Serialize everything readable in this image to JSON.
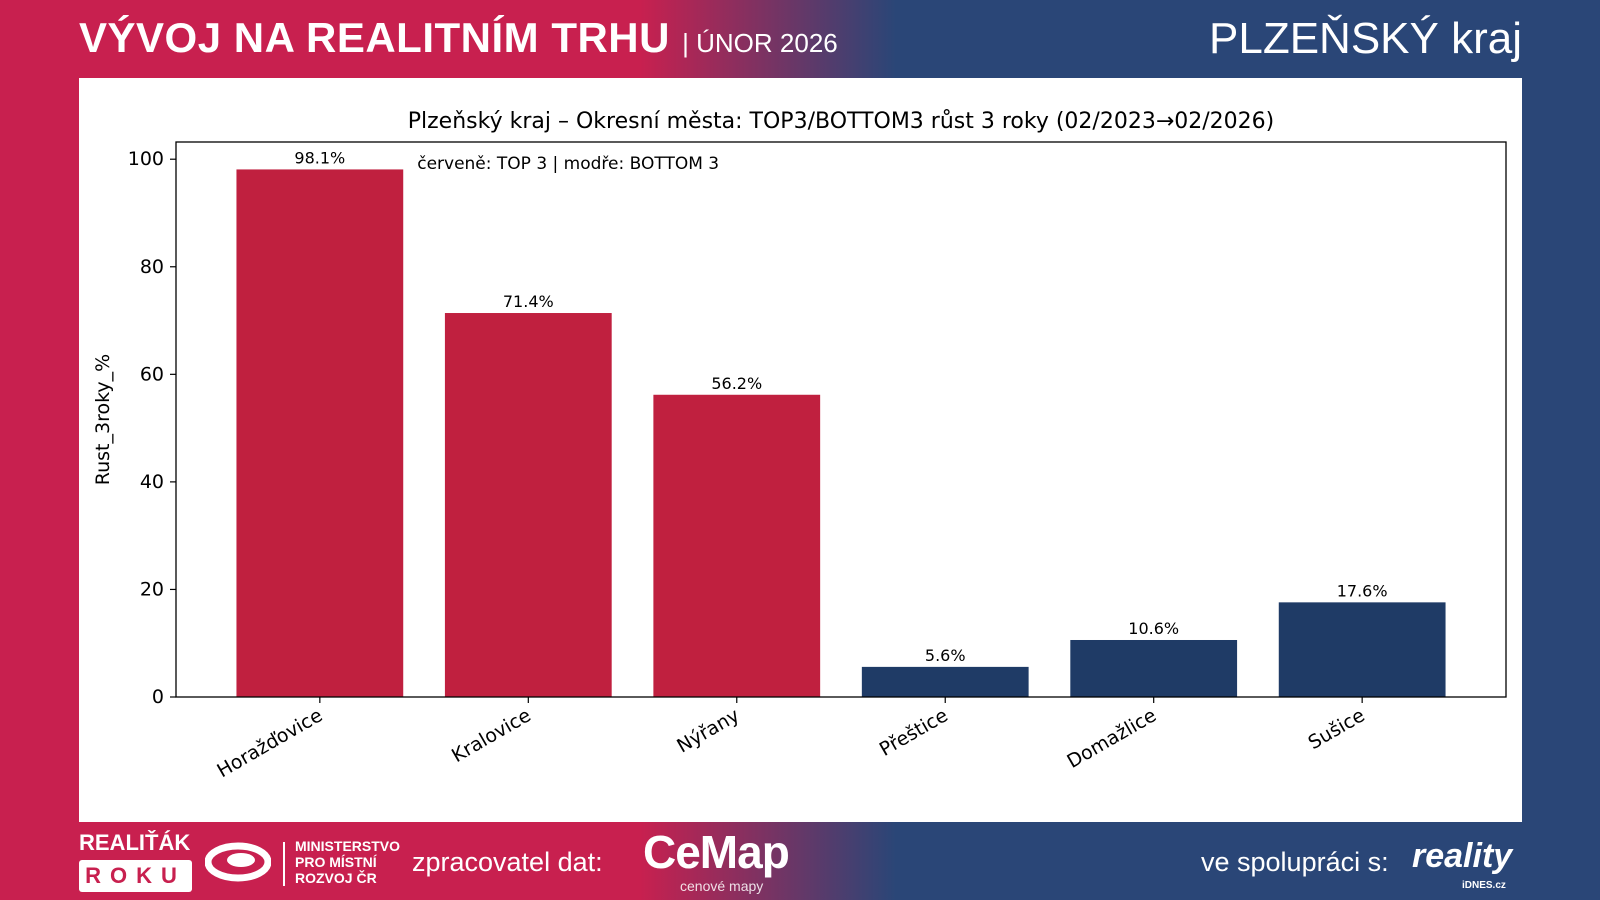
{
  "header": {
    "title": "VÝVOJ NA REALITNÍM TRHU",
    "subtitle": "| ÚNOR 2026",
    "region": "PLZEŇSKÝ kraj"
  },
  "colors": {
    "top": "#c0203f",
    "bottom": "#1f3b66"
  },
  "chart_data": {
    "type": "bar",
    "title": "Plzeňský kraj – Okresní města: TOP3/BOTTOM3 růst 3 roky (02/2023→02/2026)",
    "annotation": "červeně: TOP 3 | modře: BOTTOM 3",
    "xlabel": "",
    "ylabel": "Rust_3roky_%",
    "ylim": [
      0,
      103.2
    ],
    "yticks": [
      0,
      20,
      40,
      60,
      80,
      100
    ],
    "categories": [
      "Horažďovice",
      "Kralovice",
      "Nýřany",
      "Přeštice",
      "Domažlice",
      "Sušice"
    ],
    "values": [
      98.1,
      71.4,
      56.2,
      5.6,
      10.6,
      17.6
    ],
    "labels": [
      "98.1%",
      "71.4%",
      "56.2%",
      "5.6%",
      "10.6%",
      "17.6%"
    ],
    "groups": [
      "top",
      "top",
      "top",
      "bottom",
      "bottom",
      "bottom"
    ]
  },
  "footer": {
    "realitak": "REALIŤÁK",
    "roku": "ROKU",
    "mmr": [
      "MINISTERSTVO",
      "PRO MÍSTNÍ",
      "ROZVOJ ČR"
    ],
    "processor_label": "zpracovatel dat:",
    "cemap": "CeMap",
    "cemap_sub": "cenové mapy",
    "partner_label": "ve spolupráci s:",
    "reality": "reality",
    "idnes": "iDNES.cz"
  }
}
